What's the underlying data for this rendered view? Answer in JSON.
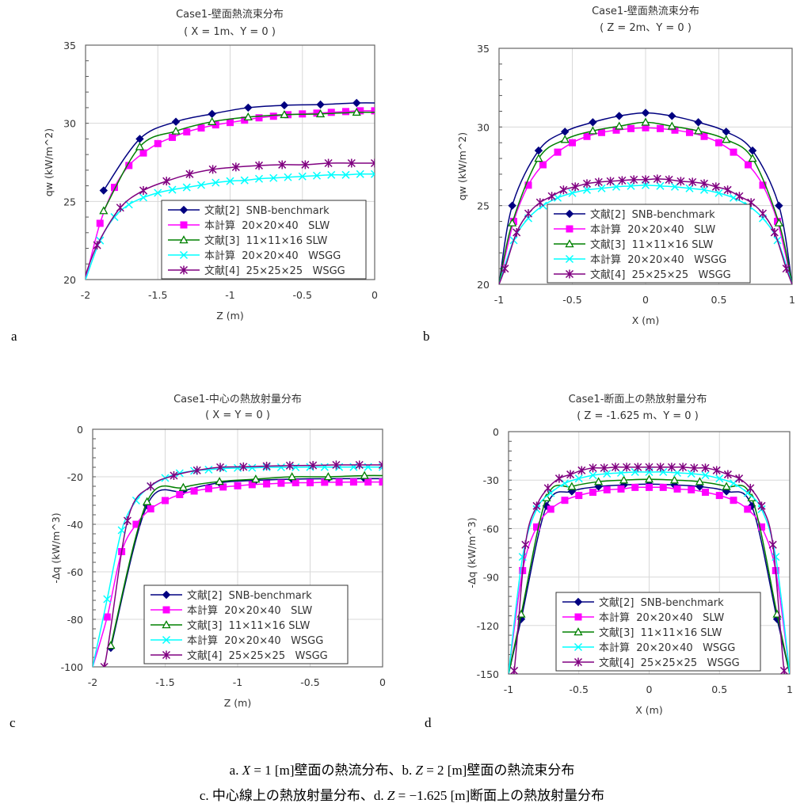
{
  "chart_data": [
    {
      "panel_label": "a",
      "type": "line",
      "title": "Case1-壁面熱流束分布",
      "subtitle": "( X = 1m、Y = 0 )",
      "xlabel": "Z (m)",
      "ylabel": "qw  (kW/m^2)",
      "xlim": [
        -2,
        0
      ],
      "ylim": [
        20,
        35
      ],
      "xticks": [
        -2,
        -1.5,
        -1,
        -0.5,
        0
      ],
      "xtick_labels": [
        "-2",
        "-1.5",
        "-1",
        "-0.5",
        "0"
      ],
      "yticks": [
        20,
        25,
        30,
        35
      ],
      "ytick_labels": [
        "20",
        "25",
        "30",
        "35"
      ],
      "grid": true,
      "legend": "bottom-right",
      "series": [
        {
          "name": "文献[2]  SNB-benchmark",
          "color": "#000080",
          "marker": "diamond",
          "x": [
            -1.875,
            -1.625,
            -1.375,
            -1.125,
            -0.875,
            -0.625,
            -0.375,
            -0.125
          ],
          "y": [
            25.7,
            29.0,
            30.1,
            30.6,
            31.0,
            31.15,
            31.2,
            31.3
          ]
        },
        {
          "name": "本計算  20×20×40   SLW",
          "color": "#FF00FF",
          "marker": "square",
          "x": [
            -1.9,
            -1.8,
            -1.7,
            -1.6,
            -1.5,
            -1.4,
            -1.3,
            -1.2,
            -1.1,
            -1.0,
            -0.9,
            -0.8,
            -0.7,
            -0.6,
            -0.5,
            -0.4,
            -0.3,
            -0.2,
            -0.1,
            0
          ],
          "y": [
            23.6,
            25.9,
            27.3,
            28.1,
            28.7,
            29.1,
            29.45,
            29.7,
            29.9,
            30.05,
            30.2,
            30.35,
            30.45,
            30.55,
            30.6,
            30.65,
            30.7,
            30.75,
            30.8,
            30.8
          ]
        },
        {
          "name": "文献[3]  11×11×16 SLW",
          "color": "#008000",
          "marker": "triangle",
          "x": [
            -1.875,
            -1.625,
            -1.375,
            -1.125,
            -0.875,
            -0.625,
            -0.375,
            -0.125
          ],
          "y": [
            24.4,
            28.5,
            29.5,
            30.1,
            30.4,
            30.55,
            30.6,
            30.7
          ]
        },
        {
          "name": "本計算  20×20×40   WSGG",
          "color": "#00FFFF",
          "marker": "x",
          "x": [
            -1.9,
            -1.8,
            -1.7,
            -1.6,
            -1.5,
            -1.4,
            -1.3,
            -1.2,
            -1.1,
            -1.0,
            -0.9,
            -0.8,
            -0.7,
            -0.6,
            -0.5,
            -0.4,
            -0.3,
            -0.2,
            -0.1,
            0
          ],
          "y": [
            22.5,
            24.0,
            24.8,
            25.25,
            25.55,
            25.75,
            25.9,
            26.05,
            26.2,
            26.3,
            26.35,
            26.45,
            26.5,
            26.55,
            26.6,
            26.65,
            26.7,
            26.7,
            26.75,
            26.75
          ]
        },
        {
          "name": "文献[4]  25×25×25   WSGG",
          "color": "#800080",
          "marker": "asterisk",
          "x": [
            -1.92,
            -1.76,
            -1.6,
            -1.44,
            -1.28,
            -1.12,
            -0.96,
            -0.8,
            -0.64,
            -0.48,
            -0.32,
            -0.16,
            0
          ],
          "y": [
            22.2,
            24.6,
            25.7,
            26.3,
            26.75,
            27.05,
            27.2,
            27.3,
            27.35,
            27.35,
            27.45,
            27.45,
            27.45
          ]
        }
      ]
    },
    {
      "panel_label": "b",
      "type": "line",
      "title": "Case1-壁面熱流束分布",
      "subtitle": "( Z = 2m、Y = 0 )",
      "xlabel": "X (m)",
      "ylabel": "qw  (kW/m^2)",
      "xlim": [
        -1,
        1
      ],
      "ylim": [
        20,
        35
      ],
      "xticks": [
        -1,
        -0.5,
        0,
        0.5,
        1
      ],
      "xtick_labels": [
        "-1",
        "-0.5",
        "0",
        "0.5",
        "1"
      ],
      "yticks": [
        20,
        25,
        30,
        35
      ],
      "ytick_labels": [
        "20",
        "25",
        "30",
        "35"
      ],
      "grid": true,
      "legend": "bottom-center",
      "series": [
        {
          "name": "文献[2]  SNB-benchmark",
          "color": "#000080",
          "marker": "diamond",
          "x": [
            -0.91,
            -0.73,
            -0.55,
            -0.36,
            -0.18,
            0,
            0.18,
            0.36,
            0.55,
            0.73,
            0.91
          ],
          "y": [
            25.0,
            28.5,
            29.7,
            30.3,
            30.7,
            30.9,
            30.7,
            30.3,
            29.7,
            28.5,
            25.0
          ]
        },
        {
          "name": "本計算  20×20×40   SLW",
          "color": "#FF00FF",
          "marker": "square",
          "x": [
            -0.9,
            -0.8,
            -0.7,
            -0.6,
            -0.5,
            -0.4,
            -0.3,
            -0.2,
            -0.1,
            0,
            0.1,
            0.2,
            0.3,
            0.4,
            0.5,
            0.6,
            0.7,
            0.8,
            0.9
          ],
          "y": [
            24.0,
            26.3,
            27.6,
            28.4,
            29.0,
            29.4,
            29.65,
            29.8,
            29.9,
            29.95,
            29.9,
            29.8,
            29.65,
            29.4,
            29.0,
            28.4,
            27.6,
            26.3,
            24.0
          ]
        },
        {
          "name": "文献[3]  11×11×16 SLW",
          "color": "#008000",
          "marker": "triangle",
          "x": [
            -0.91,
            -0.73,
            -0.55,
            -0.36,
            -0.18,
            0,
            0.18,
            0.36,
            0.55,
            0.73,
            0.91
          ],
          "y": [
            23.9,
            28.0,
            29.2,
            29.75,
            30.05,
            30.3,
            30.05,
            29.75,
            29.2,
            28.0,
            23.9
          ]
        },
        {
          "name": "本計算  20×20×40   WSGG",
          "color": "#00FFFF",
          "marker": "x",
          "x": [
            -0.9,
            -0.8,
            -0.7,
            -0.6,
            -0.5,
            -0.4,
            -0.3,
            -0.2,
            -0.1,
            0,
            0.1,
            0.2,
            0.3,
            0.4,
            0.5,
            0.6,
            0.7,
            0.8,
            0.9
          ],
          "y": [
            22.8,
            24.2,
            25.0,
            25.5,
            25.8,
            26.0,
            26.1,
            26.2,
            26.25,
            26.3,
            26.25,
            26.2,
            26.1,
            26.0,
            25.8,
            25.5,
            25.0,
            24.2,
            22.8
          ]
        },
        {
          "name": "文献[4]  25×25×25   WSGG",
          "color": "#800080",
          "marker": "asterisk",
          "x": [
            -0.96,
            -0.88,
            -0.8,
            -0.72,
            -0.64,
            -0.56,
            -0.48,
            -0.4,
            -0.32,
            -0.24,
            -0.16,
            -0.08,
            0,
            0.08,
            0.16,
            0.24,
            0.32,
            0.4,
            0.48,
            0.56,
            0.64,
            0.72,
            0.8,
            0.88,
            0.96
          ],
          "y": [
            21.0,
            23.3,
            24.5,
            25.2,
            25.6,
            26.0,
            26.2,
            26.4,
            26.5,
            26.55,
            26.6,
            26.65,
            26.65,
            26.7,
            26.65,
            26.55,
            26.5,
            26.4,
            26.2,
            26.0,
            25.6,
            25.2,
            24.5,
            23.3,
            21.0
          ]
        }
      ]
    },
    {
      "panel_label": "c",
      "type": "line",
      "title": "Case1-中心の熱放射量分布",
      "subtitle": "( X = Y = 0 )",
      "xlabel": "Z (m)",
      "ylabel": "-Δq  (kW/m^3)",
      "xlim": [
        -2,
        0
      ],
      "ylim": [
        -100,
        0
      ],
      "xticks": [
        -2,
        -1.5,
        -1,
        -0.5,
        0
      ],
      "xtick_labels": [
        "-2",
        "-1.5",
        "-1",
        "-0.5",
        "0"
      ],
      "yticks": [
        -100,
        -80,
        -60,
        -40,
        -20,
        0
      ],
      "ytick_labels": [
        "-100",
        "-80",
        "-60",
        "-40",
        "-20",
        "0"
      ],
      "grid": true,
      "legend": "bottom-right",
      "series": [
        {
          "name": "文献[2]  SNB-benchmark",
          "color": "#000080",
          "marker": "diamond",
          "x": [
            -1.875,
            -1.625,
            -1.375,
            -1.125,
            -0.875,
            -0.625,
            -0.375,
            -0.125
          ],
          "y": [
            -92,
            -32,
            -26,
            -22.5,
            -21.5,
            -21,
            -20.8,
            -20.8
          ]
        },
        {
          "name": "本計算  20×20×40   SLW",
          "color": "#FF00FF",
          "marker": "square",
          "x": [
            -1.9,
            -1.8,
            -1.7,
            -1.6,
            -1.5,
            -1.4,
            -1.3,
            -1.2,
            -1.1,
            -1.0,
            -0.9,
            -0.8,
            -0.7,
            -0.6,
            -0.5,
            -0.4,
            -0.3,
            -0.2,
            -0.1,
            0
          ],
          "y": [
            -79,
            -51.5,
            -40,
            -33.5,
            -30,
            -27.5,
            -26,
            -25,
            -24.3,
            -23.8,
            -23.3,
            -23,
            -22.7,
            -22.5,
            -22.5,
            -22.3,
            -22.3,
            -22.2,
            -22.2,
            -22.2
          ]
        },
        {
          "name": "文献[3]  11×11×16 SLW",
          "color": "#008000",
          "marker": "triangle",
          "x": [
            -1.875,
            -1.625,
            -1.375,
            -1.125,
            -0.875,
            -0.625,
            -0.375,
            -0.125
          ],
          "y": [
            -91,
            -30.5,
            -24.5,
            -22,
            -21,
            -20,
            -20,
            -19.5
          ]
        },
        {
          "name": "本計算  20×20×40   WSGG",
          "color": "#00FFFF",
          "marker": "x",
          "x": [
            -1.9,
            -1.8,
            -1.7,
            -1.6,
            -1.5,
            -1.4,
            -1.3,
            -1.2,
            -1.1,
            -1.0,
            -0.9,
            -0.8,
            -0.7,
            -0.6,
            -0.5,
            -0.4,
            -0.3,
            -0.2,
            -0.1,
            0
          ],
          "y": [
            -71.5,
            -42.5,
            -30,
            -24,
            -20.5,
            -18.5,
            -17.5,
            -17,
            -16.5,
            -16.3,
            -16.2,
            -16,
            -16,
            -16,
            -15.9,
            -15.9,
            -15.9,
            -15.9,
            -15.9,
            -15.9
          ]
        },
        {
          "name": "文献[4]  25×25×25   WSGG",
          "color": "#800080",
          "marker": "asterisk",
          "x": [
            -1.92,
            -1.76,
            -1.6,
            -1.44,
            -1.28,
            -1.12,
            -0.96,
            -0.8,
            -0.64,
            -0.48,
            -0.32,
            -0.16,
            0
          ],
          "y": [
            -100,
            -38.5,
            -24,
            -19.5,
            -17.3,
            -16,
            -15.8,
            -15.5,
            -15.3,
            -15.2,
            -15,
            -15,
            -15
          ]
        }
      ]
    },
    {
      "panel_label": "d",
      "type": "line",
      "title": "Case1-断面上の熱放射量分布",
      "subtitle": "( Z = -1.625 m、Y = 0 )",
      "xlabel": "X (m)",
      "ylabel": "-Δq  (kW/m^3)",
      "xlim": [
        -1,
        1
      ],
      "ylim": [
        -150,
        0
      ],
      "xticks": [
        -1,
        -0.5,
        0,
        0.5,
        1
      ],
      "xtick_labels": [
        "-1",
        "-0.5",
        "0",
        "0.5",
        "1"
      ],
      "yticks": [
        -150,
        -120,
        -90,
        -60,
        -30,
        0
      ],
      "ytick_labels": [
        "-150",
        "-120",
        "-90",
        "-60",
        "-30",
        "0"
      ],
      "grid": true,
      "legend": "bottom-center",
      "series": [
        {
          "name": "文献[2]  SNB-benchmark",
          "color": "#000080",
          "marker": "diamond",
          "x": [
            -0.91,
            -0.73,
            -0.55,
            -0.36,
            -0.18,
            0,
            0.18,
            0.36,
            0.55,
            0.73,
            0.91
          ],
          "y": [
            -116,
            -46,
            -37,
            -34,
            -33,
            -32.5,
            -33,
            -34,
            -37,
            -46,
            -116
          ]
        },
        {
          "name": "本計算  20×20×40   SLW",
          "color": "#FF00FF",
          "marker": "square",
          "x": [
            -0.9,
            -0.8,
            -0.7,
            -0.6,
            -0.5,
            -0.4,
            -0.3,
            -0.2,
            -0.1,
            0,
            0.1,
            0.2,
            0.3,
            0.4,
            0.5,
            0.6,
            0.7,
            0.8,
            0.9
          ],
          "y": [
            -86,
            -59,
            -48,
            -42.5,
            -39.5,
            -37.5,
            -36,
            -35.5,
            -34.5,
            -34.5,
            -34.5,
            -35.5,
            -36,
            -37.5,
            -39.5,
            -42.5,
            -48,
            -59,
            -86
          ]
        },
        {
          "name": "文献[3]  11×11×16 SLW",
          "color": "#008000",
          "marker": "triangle",
          "x": [
            -0.91,
            -0.73,
            -0.55,
            -0.36,
            -0.18,
            0,
            0.18,
            0.36,
            0.55,
            0.73,
            0.91
          ],
          "y": [
            -113,
            -41,
            -34,
            -31,
            -30,
            -29.5,
            -30,
            -31,
            -34,
            -41,
            -113
          ]
        },
        {
          "name": "本計算  20×20×40   WSGG",
          "color": "#00FFFF",
          "marker": "x",
          "x": [
            -0.9,
            -0.8,
            -0.7,
            -0.6,
            -0.5,
            -0.4,
            -0.3,
            -0.2,
            -0.1,
            0,
            0.1,
            0.2,
            0.3,
            0.4,
            0.5,
            0.6,
            0.7,
            0.8,
            0.9
          ],
          "y": [
            -77.5,
            -48,
            -38,
            -32,
            -29,
            -27,
            -26,
            -25.5,
            -25,
            -25,
            -25,
            -25.5,
            -26,
            -27,
            -29,
            -32,
            -38,
            -48,
            -77.5
          ]
        },
        {
          "name": "文献[4]  25×25×25   WSGG",
          "color": "#800080",
          "marker": "asterisk",
          "x": [
            -0.96,
            -0.88,
            -0.8,
            -0.72,
            -0.64,
            -0.56,
            -0.48,
            -0.4,
            -0.32,
            -0.24,
            -0.16,
            -0.08,
            0,
            0.08,
            0.16,
            0.24,
            0.32,
            0.4,
            0.48,
            0.56,
            0.64,
            0.72,
            0.8,
            0.88,
            0.96
          ],
          "y": [
            -148,
            -70,
            -46,
            -35,
            -29,
            -26.5,
            -24,
            -22.5,
            -22.5,
            -22,
            -22,
            -22,
            -22,
            -22,
            -22,
            -22,
            -22.5,
            -22.5,
            -24,
            -26.5,
            -29,
            -35,
            -46,
            -70,
            -148
          ]
        }
      ]
    }
  ],
  "captions": {
    "line1": [
      "a.  ",
      "X",
      " = 1 [m]壁面の熱流分布、b.  ",
      "Z",
      " = 2 [m]壁面の熱流束分布"
    ],
    "line2": [
      "c.  中心線上の熱放射量分布、d.  ",
      "Z",
      " = −1.625 [m]断面上の熱放射量分布"
    ]
  }
}
